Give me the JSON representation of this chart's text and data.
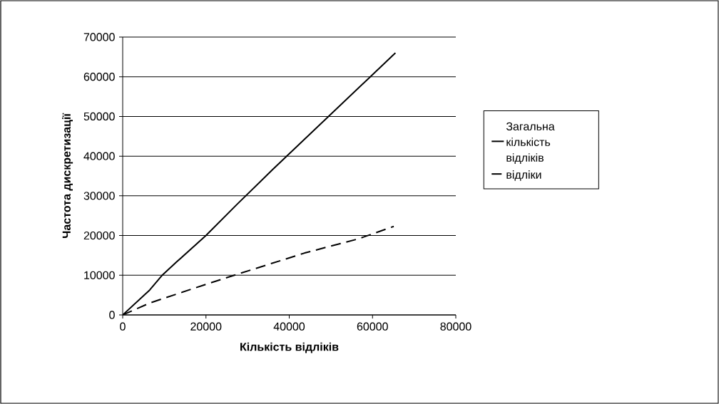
{
  "chart_data": {
    "type": "line",
    "xlabel": "Кількість відліків",
    "ylabel": "Частота дискретизації",
    "xlim": [
      0,
      80000
    ],
    "ylim": [
      0,
      70000
    ],
    "xticks": [
      0,
      20000,
      40000,
      60000,
      80000
    ],
    "yticks": [
      0,
      10000,
      20000,
      30000,
      40000,
      50000,
      60000,
      70000
    ],
    "grid": "y",
    "legend": "right",
    "series": [
      {
        "name": "Загальна кількість відліків",
        "color": "#000000",
        "line_style": "solid",
        "x": [
          0,
          6500,
          9400,
          13000,
          20000,
          27400,
          36000,
          65500
        ],
        "values": [
          0,
          6300,
          9900,
          13400,
          20000,
          27800,
          36600,
          66000
        ]
      },
      {
        "name": "відліки",
        "color": "#000000",
        "line_style": "dashed",
        "x": [
          0,
          6500,
          19400,
          27400,
          43700,
          56700,
          65100
        ],
        "values": [
          0,
          3000,
          7500,
          10200,
          15600,
          19200,
          22300
        ]
      }
    ]
  }
}
